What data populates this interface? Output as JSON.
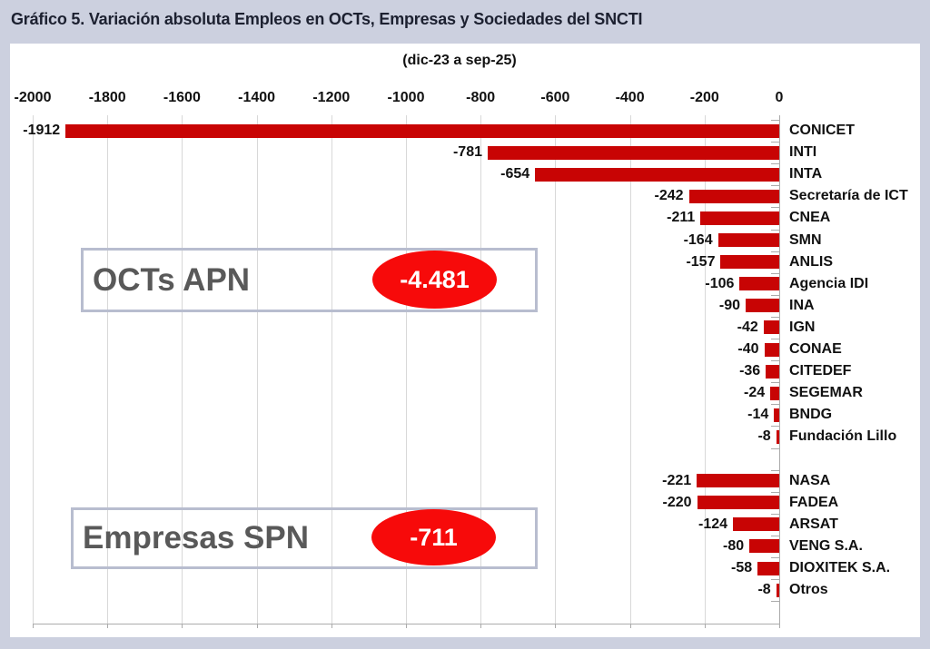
{
  "page": {
    "title": "Gráfico 5. Variación absoluta Empleos en OCTs, Empresas y Sociedades del SNCTI",
    "subtitle": "(dic-23 a sep-25)"
  },
  "colors": {
    "background": "#CCD0DF",
    "panel": "#FFFFFF",
    "bar": "#C80404",
    "oval": "#F70A0A",
    "grid": "#D8D8D8",
    "axis": "#ABABAB",
    "box_border": "#B8BDCF",
    "box_label_text": "#595959",
    "label_text": "#111111",
    "title_text": "#1C2030"
  },
  "chart_data": {
    "type": "bar",
    "orientation": "horizontal",
    "title": "Gráfico 5. Variación absoluta Empleos en OCTs, Empresas y Sociedades del SNCTI",
    "subtitle": "(dic-23 a sep-25)",
    "xlabel": "",
    "ylabel": "",
    "xlim": [
      -2000,
      0
    ],
    "x_ticks": [
      -2000,
      -1800,
      -1600,
      -1400,
      -1200,
      -1000,
      -800,
      -600,
      -400,
      -200,
      0
    ],
    "grid": true,
    "legend": false,
    "bar_color": "#C80404",
    "groups": [
      {
        "name": "OCTs APN",
        "total": -4481,
        "total_label": "-4.481",
        "items": [
          {
            "label": "CONICET",
            "value": -1912
          },
          {
            "label": "INTI",
            "value": -781
          },
          {
            "label": "INTA",
            "value": -654
          },
          {
            "label": "Secretaría de ICT",
            "value": -242
          },
          {
            "label": "CNEA",
            "value": -211
          },
          {
            "label": "SMN",
            "value": -164
          },
          {
            "label": "ANLIS",
            "value": -157
          },
          {
            "label": "Agencia IDI",
            "value": -106
          },
          {
            "label": "INA",
            "value": -90
          },
          {
            "label": "IGN",
            "value": -42
          },
          {
            "label": "CONAE",
            "value": -40
          },
          {
            "label": "CITEDEF",
            "value": -36
          },
          {
            "label": "SEGEMAR",
            "value": -24
          },
          {
            "label": "BNDG",
            "value": -14
          },
          {
            "label": "Fundación Lillo",
            "value": -8
          }
        ]
      },
      {
        "name": "Empresas SPN",
        "total": -711,
        "total_label": "-711",
        "items": [
          {
            "label": "NASA",
            "value": -221
          },
          {
            "label": "FADEA",
            "value": -220
          },
          {
            "label": "ARSAT",
            "value": -124
          },
          {
            "label": "VENG S.A.",
            "value": -80
          },
          {
            "label": "DIOXITEK S.A.",
            "value": -58
          },
          {
            "label": "Otros",
            "value": -8
          }
        ]
      }
    ]
  }
}
